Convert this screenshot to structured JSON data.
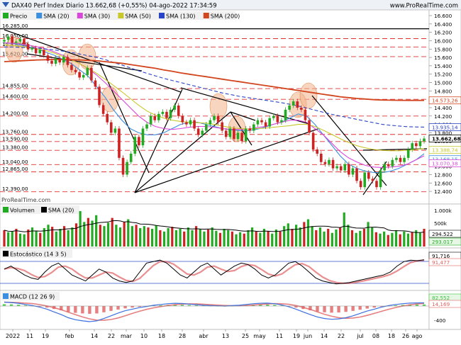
{
  "header": {
    "title": "DAX40 Perf Index Diario 13.662,68 (+0,55%) 04-ago-2022 17:34:59",
    "website": "www.ProRealTime.com",
    "watermark": "ProRealTime.com"
  },
  "colors": {
    "price_up": "#22aa22",
    "price_down": "#cc2222",
    "sma20": "#3b8fe0",
    "sma30": "#d946d9",
    "sma50": "#c8c82a",
    "sma130": "#2a44c8",
    "sma200": "#d2451e",
    "hline": "#e03030",
    "trend": "#000000",
    "highlight": "#f2b28a"
  },
  "chart_data": [
    {
      "type": "line",
      "panel": "price",
      "title": "Precio",
      "legend": [
        "Precio",
        "SMA (20)",
        "SMA (30)",
        "SMA (50)",
        "SMA (130)",
        "SMA (200)"
      ],
      "ylim": [
        12300,
        16600
      ],
      "yticks": [
        "16.600",
        "16.400",
        "16.200",
        "16.000",
        "15.800",
        "15.600",
        "15.400",
        "15.200",
        "15.000",
        "14.800",
        "14.600",
        "14.400",
        "14.200",
        "14.000",
        "13.800",
        "13.600",
        "13.400",
        "13.200",
        "13.000",
        "12.800",
        "12.600",
        "12.400"
      ],
      "xticks": [
        "2022",
        "11",
        "19",
        "feb",
        "14",
        "22",
        "mar",
        "10",
        "18",
        "28",
        "abr",
        "13",
        "25",
        "may",
        "11",
        "19",
        "jun",
        "14",
        "22",
        "jul",
        "08",
        "18",
        "26",
        "ago"
      ],
      "horizontal_levels": [
        16285,
        16050,
        15850,
        15620,
        14855,
        14600,
        14200,
        13760,
        13590,
        13380,
        13040,
        12865,
        12390
      ],
      "level_labels": [
        "16.285,00",
        "16.050,00",
        "15.850,00",
        "15.620,00",
        "14.855,00",
        "14.600,00",
        "14.200,00",
        "13.760,00",
        "13.590,00",
        "13.380,00",
        "13.040,00",
        "12.865,00",
        "12.390,00"
      ],
      "close": [
        16020,
        16100,
        15950,
        15980,
        16040,
        15920,
        15790,
        15820,
        15700,
        15780,
        15650,
        15520,
        15450,
        15570,
        15480,
        15610,
        15420,
        15300,
        15250,
        15120,
        15180,
        15350,
        15050,
        14900,
        14460,
        14250,
        14050,
        13800,
        13900,
        13200,
        12800,
        13100,
        13300,
        13700,
        13500,
        13900,
        14000,
        14200,
        14100,
        14250,
        14300,
        14150,
        14350,
        14450,
        14200,
        14050,
        14000,
        14100,
        13900,
        13750,
        13850,
        14000,
        14100,
        14200,
        14050,
        13850,
        13700,
        13900,
        13650,
        13800,
        13600,
        13900,
        13850,
        14000,
        14100,
        14050,
        13950,
        14150,
        14200,
        14050,
        14100,
        14350,
        14450,
        14550,
        14400,
        14350,
        14100,
        13800,
        13400,
        13300,
        13100,
        13050,
        13150,
        12950,
        13000,
        12900,
        13050,
        12800,
        12950,
        12650,
        12500,
        12850,
        12700,
        12650,
        12500,
        12900,
        13050,
        13000,
        13150,
        13200,
        13100,
        13200,
        13400,
        13550,
        13480,
        13600,
        13662
      ],
      "series": [
        {
          "name": "SMA (20)",
          "values": [
            15950,
            15930,
            15900,
            15850,
            15800,
            15720,
            15650,
            15550,
            15450,
            15300,
            15150,
            14900,
            14650,
            14350,
            14100,
            13900,
            13800,
            13750,
            13750,
            13800,
            13900,
            14000,
            14050,
            14050,
            14000,
            13950,
            13900,
            13870,
            13850,
            13850,
            13880,
            13930,
            14000,
            14050,
            14150,
            14250,
            14200,
            14000,
            13750,
            13500,
            13250,
            13050,
            12950,
            12880,
            12850,
            12850,
            12880,
            12950,
            13050,
            13150,
            13300
          ]
        },
        {
          "name": "SMA (30)",
          "values": [
            15950,
            15940,
            15920,
            15890,
            15850,
            15800,
            15730,
            15650,
            15550,
            15450,
            15330,
            15180,
            15000,
            14800,
            14600,
            14400,
            14200,
            14050,
            13950,
            13900,
            13880,
            13900,
            13930,
            13950,
            13950,
            13930,
            13900,
            13880,
            13880,
            13890,
            13920,
            13950,
            14000,
            14050,
            14100,
            14100,
            14050,
            13900,
            13750,
            13550,
            13350,
            13200,
            13100,
            13020,
            12980,
            12970,
            12980,
            13000,
            13050,
            13150,
            13250
          ]
        },
        {
          "name": "SMA (50)",
          "values": [
            15900,
            15880,
            15860,
            15830,
            15800,
            15760,
            15700,
            15620,
            15540,
            15450,
            15340,
            15220,
            15080,
            14930,
            14780,
            14620,
            14460,
            14320,
            14220,
            14150,
            14100,
            14070,
            14050,
            14040,
            14030,
            14000,
            13960,
            13920,
            13900,
            13890,
            13900,
            13910,
            13930,
            13950,
            13970,
            14000,
            14000,
            13950,
            13860,
            13760,
            13660,
            13570,
            13490,
            13440,
            13400,
            13380,
            13370,
            13370,
            13380,
            13400,
            13420
          ]
        },
        {
          "name": "SMA (130)",
          "values": [
            15850,
            15850,
            15840,
            15830,
            15820,
            15800,
            15780,
            15750,
            15720,
            15680,
            15640,
            15600,
            15550,
            15480,
            15420,
            15350,
            15280,
            15220,
            15160,
            15100,
            15050,
            15000,
            14950,
            14900,
            14850,
            14800,
            14750,
            14710,
            14670,
            14640,
            14610,
            14580,
            14550,
            14520,
            14480,
            14440,
            14390,
            14340,
            14290,
            14240,
            14200,
            14160,
            14120,
            14080,
            14040,
            14000,
            13980,
            13960,
            13945,
            13938,
            13935
          ]
        },
        {
          "name": "SMA (200)",
          "values": [
            15500,
            15510,
            15520,
            15530,
            15540,
            15545,
            15550,
            15550,
            15545,
            15540,
            15530,
            15520,
            15500,
            15480,
            15460,
            15430,
            15400,
            15370,
            15340,
            15300,
            15270,
            15230,
            15200,
            15170,
            15140,
            15110,
            15080,
            15050,
            15020,
            14990,
            14960,
            14930,
            14900,
            14870,
            14840,
            14810,
            14780,
            14750,
            14720,
            14690,
            14660,
            14640,
            14620,
            14605,
            14590,
            14582,
            14578,
            14575,
            14574,
            14573,
            14573
          ]
        }
      ],
      "last_values": [
        "13.935,14",
        "13.662,68",
        "13.388,74",
        "13.168,15",
        "13.070,38",
        "14.573,26"
      ]
    },
    {
      "type": "bar",
      "panel": "volume",
      "title": "Volumen",
      "legend": [
        "Volumen",
        "SMA (20)"
      ],
      "yticks": [
        "1.000k",
        "500k"
      ],
      "last_values": [
        "294.522",
        "293.017"
      ],
      "values": [
        120,
        105,
        110,
        130,
        95,
        90,
        125,
        140,
        115,
        100,
        135,
        160,
        145,
        110,
        130,
        150,
        120,
        140,
        170,
        260,
        180,
        210,
        190,
        230,
        160,
        150,
        175,
        210,
        160,
        140,
        180,
        200,
        150,
        160,
        135,
        150,
        140,
        130,
        155,
        120,
        110,
        135,
        145,
        120,
        130,
        110,
        140,
        120,
        150,
        130,
        110,
        125,
        140,
        115,
        100,
        130,
        120,
        110,
        90,
        105,
        95,
        120,
        140,
        110,
        100,
        130,
        115,
        95,
        125,
        110,
        150,
        170,
        130,
        160,
        140,
        180,
        200,
        150,
        120,
        140,
        110,
        130,
        100,
        125,
        140,
        250,
        160,
        120,
        100,
        115,
        130,
        180,
        140,
        105,
        95,
        110,
        85,
        100,
        120,
        90,
        110,
        95,
        105,
        120,
        100,
        130
      ]
    },
    {
      "type": "line",
      "panel": "stochastic",
      "title": "Estocástico (14 3 5)",
      "last_values": [
        "91,716",
        "91,477"
      ],
      "values": [
        60,
        70,
        55,
        40,
        30,
        25,
        50,
        70,
        80,
        60,
        40,
        30,
        20,
        40,
        60,
        50,
        30,
        20,
        15,
        20,
        50,
        80,
        85,
        90,
        80,
        60,
        40,
        30,
        50,
        70,
        80,
        60,
        40,
        55,
        70,
        80,
        75,
        60,
        40,
        30,
        40,
        60,
        80,
        85,
        70,
        50,
        30,
        20,
        15,
        10,
        12,
        15,
        20,
        25,
        30,
        35,
        40,
        50,
        70,
        85,
        90,
        88,
        91
      ]
    },
    {
      "type": "bar",
      "panel": "macd",
      "title": "MACD (12 26 9)",
      "yticks": [
        "-400"
      ],
      "last_values": [
        "82,552",
        "14,169"
      ],
      "values": [
        100,
        90,
        70,
        40,
        10,
        -30,
        -80,
        -150,
        -220,
        -300,
        -350,
        -380,
        -400,
        -380,
        -320,
        -250,
        -180,
        -120,
        -80,
        -40,
        -10,
        20,
        40,
        60,
        70,
        65,
        50,
        35,
        20,
        10,
        5,
        0,
        10,
        20,
        40,
        60,
        70,
        75,
        60,
        30,
        -20,
        -80,
        -150,
        -220,
        -280,
        -320,
        -340,
        -330,
        -300,
        -250,
        -190,
        -130,
        -80,
        -30,
        10,
        40,
        60,
        75,
        80,
        82
      ]
    }
  ]
}
